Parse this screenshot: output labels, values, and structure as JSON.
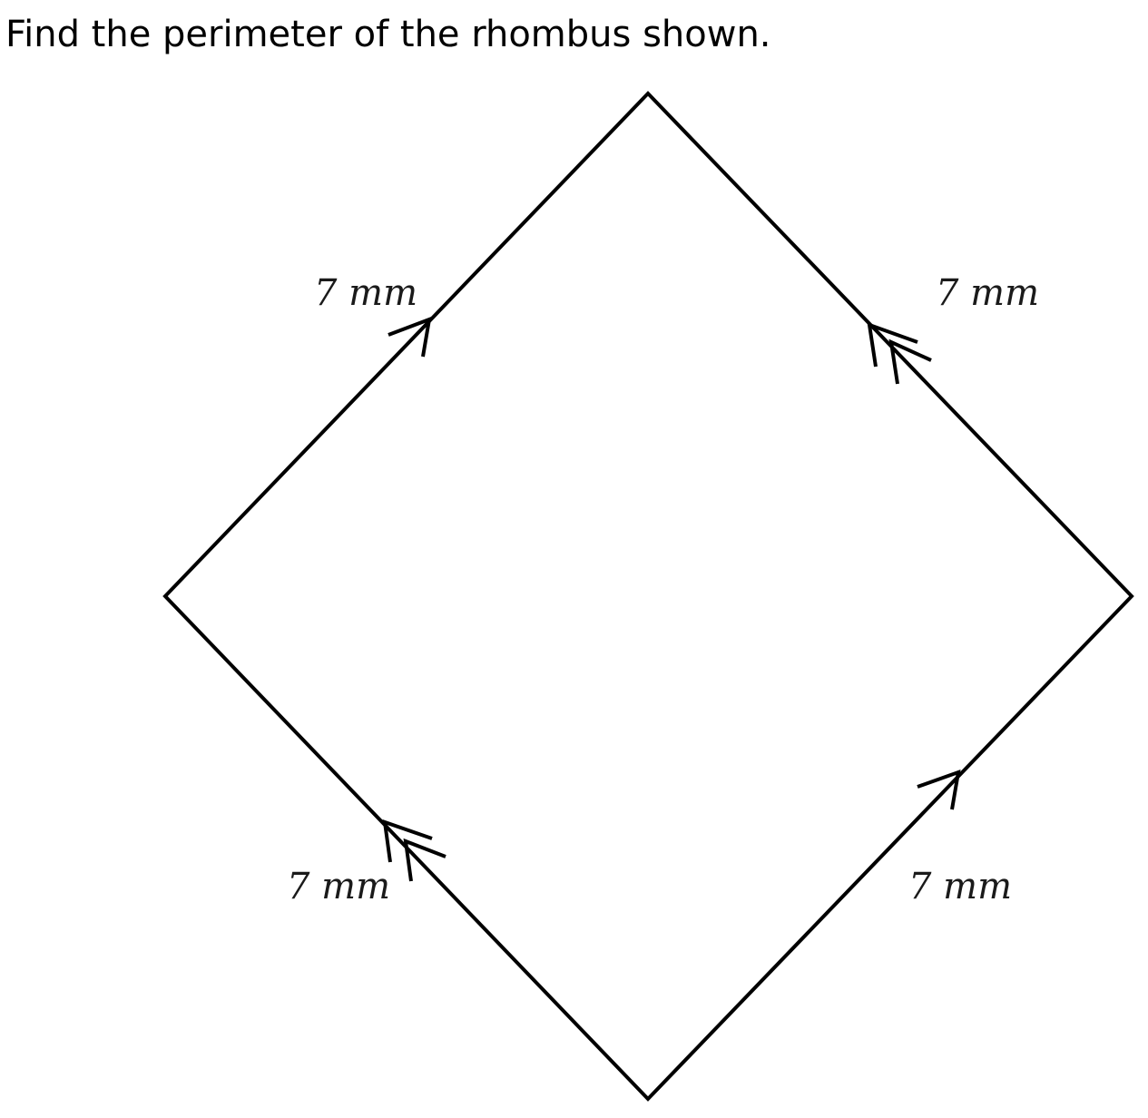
{
  "question": {
    "text": "Find the perimeter of the rhombus shown."
  },
  "figure": {
    "shape": "rhombus",
    "stroke_color": "#000000",
    "sides": [
      {
        "id": "top-left",
        "label": "7 mm",
        "arrow_marks": 1
      },
      {
        "id": "top-right",
        "label": "7 mm",
        "arrow_marks": 2
      },
      {
        "id": "bottom-left",
        "label": "7 mm",
        "arrow_marks": 2
      },
      {
        "id": "bottom-right",
        "label": "7 mm",
        "arrow_marks": 1
      }
    ]
  }
}
